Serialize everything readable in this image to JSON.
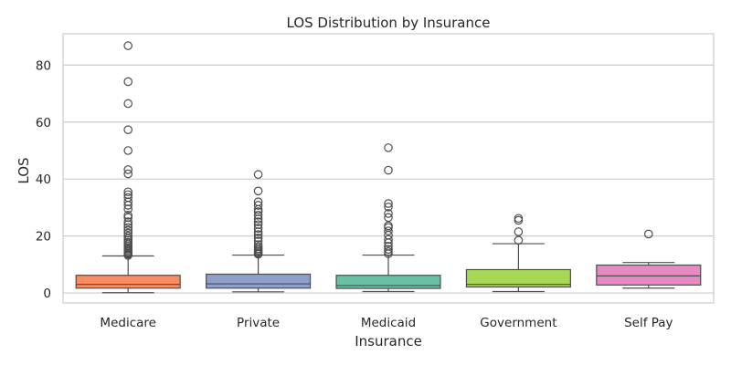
{
  "chart_data": {
    "type": "box",
    "title": "LOS Distribution by Insurance",
    "xlabel": "Insurance",
    "ylabel": "LOS",
    "ylim": [
      -3.5,
      91
    ],
    "yticks": [
      0,
      20,
      40,
      60,
      80
    ],
    "grid": true,
    "categories": [
      "Medicare",
      "Private",
      "Medicaid",
      "Government",
      "Self Pay"
    ],
    "colors": [
      "#fc8d62",
      "#8da0cb",
      "#66c2a5",
      "#a6d854",
      "#e78ac3"
    ],
    "boxes": [
      {
        "category": "Medicare",
        "whisker_low": 0.1,
        "q1": 1.7,
        "median": 3.0,
        "q3": 6.2,
        "whisker_high": 13.0,
        "outliers": [
          13.2,
          13.6,
          14.0,
          14.5,
          15.0,
          15.5,
          16.0,
          16.6,
          17.2,
          17.8,
          18.5,
          19.2,
          20.0,
          21.0,
          22.0,
          23.0,
          24.0,
          25.0,
          26.5,
          27.3,
          29.5,
          30.8,
          32.0,
          33.5,
          34.5,
          35.5,
          41.8,
          43.3,
          50.0,
          57.3,
          66.5,
          74.2,
          86.8
        ]
      },
      {
        "category": "Private",
        "whisker_low": 0.4,
        "q1": 1.7,
        "median": 3.2,
        "q3": 6.6,
        "whisker_high": 13.3,
        "outliers": [
          13.6,
          14.0,
          14.5,
          15.0,
          15.5,
          16.2,
          17.0,
          18.2,
          19.3,
          20.5,
          21.5,
          22.7,
          24.0,
          25.0,
          26.0,
          27.3,
          28.5,
          29.3,
          30.8,
          32.0,
          35.8,
          41.6
        ]
      },
      {
        "category": "Medicaid",
        "whisker_low": 0.5,
        "q1": 1.6,
        "median": 2.6,
        "q3": 6.2,
        "whisker_high": 13.3,
        "outliers": [
          13.8,
          14.5,
          15.3,
          16.4,
          17.6,
          18.8,
          20.3,
          21.8,
          23.0,
          23.6,
          26.5,
          27.9,
          30.2,
          31.4,
          43.1,
          51.0
        ]
      },
      {
        "category": "Government",
        "whisker_low": 0.5,
        "q1": 2.1,
        "median": 3.0,
        "q3": 8.2,
        "whisker_high": 17.3,
        "outliers": [
          18.5,
          21.5,
          25.5,
          26.2
        ]
      },
      {
        "category": "Self Pay",
        "whisker_low": 1.7,
        "q1": 2.8,
        "median": 6.0,
        "q3": 9.8,
        "whisker_high": 10.7,
        "outliers": [
          20.7
        ]
      }
    ]
  }
}
